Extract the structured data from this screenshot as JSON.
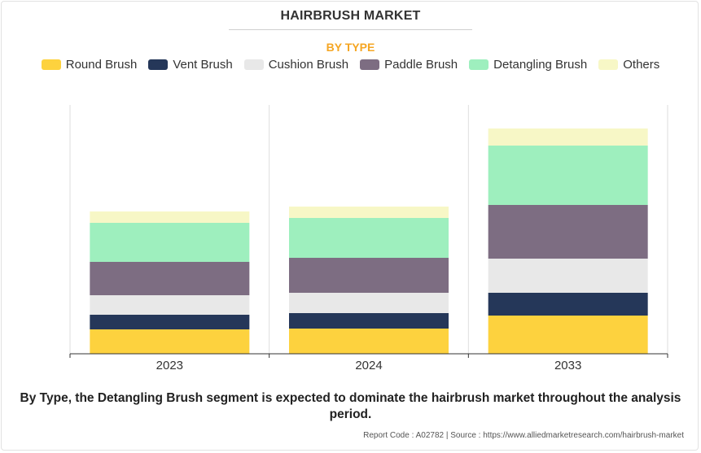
{
  "title": "HAIRBRUSH MARKET",
  "subtitle": "BY TYPE",
  "footnote": "By Type, the Detangling Brush segment is expected to dominate the hairbrush market throughout the analysis period.",
  "source": "Report Code : A02782  |  Source : https://www.alliedmarketresearch.com/hairbrush-market",
  "chart_data": {
    "type": "bar",
    "stacked": true,
    "categories": [
      "2023",
      "2024",
      "2033"
    ],
    "series": [
      {
        "name": "Round Brush",
        "color": "#fdd23e",
        "values": [
          30,
          31,
          47
        ]
      },
      {
        "name": "Vent Brush",
        "color": "#253759",
        "values": [
          18,
          19,
          28
        ]
      },
      {
        "name": "Cushion Brush",
        "color": "#e8e8e8",
        "values": [
          24,
          25,
          42
        ]
      },
      {
        "name": "Paddle Brush",
        "color": "#7d6d82",
        "values": [
          41,
          43,
          66
        ]
      },
      {
        "name": "Detangling Brush",
        "color": "#9eefbe",
        "values": [
          48,
          49,
          73
        ]
      },
      {
        "name": "Others",
        "color": "#f7f7c6",
        "values": [
          14,
          14,
          21
        ]
      }
    ],
    "ylim": [
      0,
      306
    ],
    "y_axis_visible": false,
    "grid": "vertical separators between categories",
    "legend_position": "top"
  }
}
